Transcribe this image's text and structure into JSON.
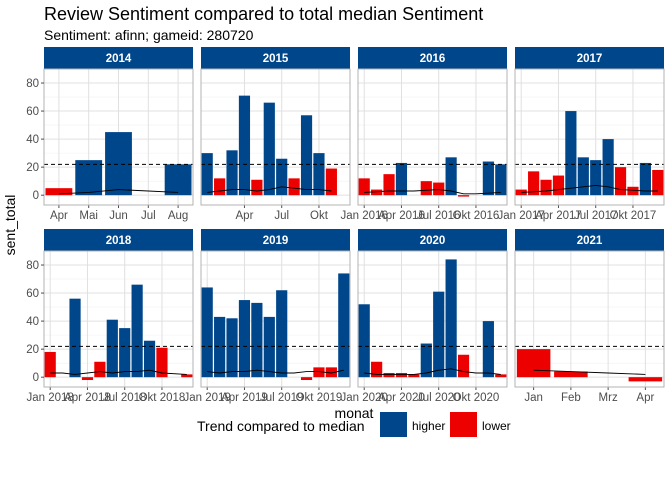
{
  "chart_data": {
    "type": "bar",
    "title": "Review Sentiment compared to total median Sentiment",
    "subtitle": "Sentiment: afinn; gameid: 280720",
    "xlabel": "monat",
    "ylabel": "sent_total",
    "ylim": [
      -7,
      90
    ],
    "y_ticks": [
      0,
      20,
      40,
      60,
      80
    ],
    "median": 22,
    "grid": true,
    "legend": {
      "title": "Trend compared to median",
      "position": "bottom",
      "entries": [
        {
          "key": "higher",
          "label": "higher",
          "color": "#00468B"
        },
        {
          "key": "lower",
          "label": "lower",
          "color": "#ED0000"
        }
      ]
    },
    "panels": [
      {
        "label": "2014",
        "x_range": [
          0.5,
          5.5
        ],
        "ticks": [
          {
            "x": 1,
            "label": "Apr"
          },
          {
            "x": 2,
            "label": "Mai"
          },
          {
            "x": 3,
            "label": "Jun"
          },
          {
            "x": 4,
            "label": "Jul"
          },
          {
            "x": 5,
            "label": "Aug"
          }
        ],
        "bars": [
          {
            "x": 1,
            "y": 5,
            "g": "lower"
          },
          {
            "x": 2,
            "y": 25,
            "g": "higher"
          },
          {
            "x": 3,
            "y": 45,
            "g": "higher"
          },
          {
            "x": 5,
            "y": 22,
            "g": "higher"
          }
        ],
        "trend": [
          [
            1,
            1
          ],
          [
            2,
            2
          ],
          [
            3,
            4
          ],
          [
            4,
            3
          ],
          [
            5,
            2
          ]
        ]
      },
      {
        "label": "2015",
        "x_range": [
          0.5,
          12.5
        ],
        "ticks": [
          {
            "x": 4,
            "label": "Apr"
          },
          {
            "x": 7,
            "label": "Jul"
          },
          {
            "x": 10,
            "label": "Okt"
          }
        ],
        "bars": [
          {
            "x": 1,
            "y": 30,
            "g": "higher"
          },
          {
            "x": 2,
            "y": 12,
            "g": "lower"
          },
          {
            "x": 3,
            "y": 32,
            "g": "higher"
          },
          {
            "x": 4,
            "y": 71,
            "g": "higher"
          },
          {
            "x": 5,
            "y": 11,
            "g": "lower"
          },
          {
            "x": 6,
            "y": 66,
            "g": "higher"
          },
          {
            "x": 7,
            "y": 26,
            "g": "higher"
          },
          {
            "x": 8,
            "y": 12,
            "g": "lower"
          },
          {
            "x": 9,
            "y": 57,
            "g": "higher"
          },
          {
            "x": 10,
            "y": 30,
            "g": "higher"
          },
          {
            "x": 11,
            "y": 19,
            "g": "lower"
          }
        ],
        "trend": [
          [
            1,
            2
          ],
          [
            2,
            3
          ],
          [
            3,
            4
          ],
          [
            4,
            4
          ],
          [
            5,
            3
          ],
          [
            6,
            4
          ],
          [
            7,
            6
          ],
          [
            8,
            5
          ],
          [
            9,
            4
          ],
          [
            10,
            4
          ],
          [
            11,
            3
          ]
        ]
      },
      {
        "label": "2016",
        "x_range": [
          0.5,
          12.5
        ],
        "ticks": [
          {
            "x": 1,
            "label": "Jan 2016"
          },
          {
            "x": 4,
            "label": "Apr 2016"
          },
          {
            "x": 7,
            "label": "Jul 2016"
          },
          {
            "x": 10,
            "label": "Okt 2016"
          }
        ],
        "bars": [
          {
            "x": 1,
            "y": 12,
            "g": "lower"
          },
          {
            "x": 2,
            "y": 4,
            "g": "lower"
          },
          {
            "x": 3,
            "y": 15,
            "g": "lower"
          },
          {
            "x": 4,
            "y": 23,
            "g": "higher"
          },
          {
            "x": 6,
            "y": 10,
            "g": "lower"
          },
          {
            "x": 7,
            "y": 9,
            "g": "lower"
          },
          {
            "x": 8,
            "y": 27,
            "g": "higher"
          },
          {
            "x": 9,
            "y": -1,
            "g": "lower"
          },
          {
            "x": 11,
            "y": 24,
            "g": "higher"
          },
          {
            "x": 12,
            "y": 22,
            "g": "higher"
          }
        ],
        "trend": [
          [
            1,
            2
          ],
          [
            3,
            3
          ],
          [
            5,
            3
          ],
          [
            7,
            4
          ],
          [
            8,
            3
          ],
          [
            9,
            1
          ],
          [
            10,
            1
          ],
          [
            12,
            2
          ]
        ]
      },
      {
        "label": "2017",
        "x_range": [
          0.5,
          12.5
        ],
        "ticks": [
          {
            "x": 1,
            "label": "Jan 2017"
          },
          {
            "x": 4,
            "label": "Apr 2017"
          },
          {
            "x": 7,
            "label": "Jul 2017"
          },
          {
            "x": 10,
            "label": "Okt 2017"
          }
        ],
        "bars": [
          {
            "x": 1,
            "y": 4,
            "g": "lower"
          },
          {
            "x": 2,
            "y": 17,
            "g": "lower"
          },
          {
            "x": 3,
            "y": 11,
            "g": "lower"
          },
          {
            "x": 4,
            "y": 14,
            "g": "lower"
          },
          {
            "x": 5,
            "y": 60,
            "g": "higher"
          },
          {
            "x": 6,
            "y": 27,
            "g": "higher"
          },
          {
            "x": 7,
            "y": 25,
            "g": "higher"
          },
          {
            "x": 8,
            "y": 40,
            "g": "higher"
          },
          {
            "x": 9,
            "y": 20,
            "g": "lower"
          },
          {
            "x": 10,
            "y": 6,
            "g": "lower"
          },
          {
            "x": 11,
            "y": 23,
            "g": "higher"
          },
          {
            "x": 12,
            "y": 18,
            "g": "lower"
          }
        ],
        "trend": [
          [
            1,
            2
          ],
          [
            3,
            3
          ],
          [
            5,
            5
          ],
          [
            7,
            7
          ],
          [
            8,
            6
          ],
          [
            9,
            4
          ],
          [
            11,
            3
          ],
          [
            12,
            3
          ]
        ]
      },
      {
        "label": "2018",
        "x_range": [
          0.5,
          12.5
        ],
        "ticks": [
          {
            "x": 1,
            "label": "Jan 2018"
          },
          {
            "x": 4,
            "label": "Apr 2018"
          },
          {
            "x": 7,
            "label": "Jul 2018"
          },
          {
            "x": 10,
            "label": "Okt 2018"
          }
        ],
        "bars": [
          {
            "x": 1,
            "y": 18,
            "g": "lower"
          },
          {
            "x": 3,
            "y": 56,
            "g": "higher"
          },
          {
            "x": 4,
            "y": -2,
            "g": "lower"
          },
          {
            "x": 5,
            "y": 11,
            "g": "lower"
          },
          {
            "x": 6,
            "y": 41,
            "g": "higher"
          },
          {
            "x": 7,
            "y": 35,
            "g": "higher"
          },
          {
            "x": 8,
            "y": 66,
            "g": "higher"
          },
          {
            "x": 9,
            "y": 26,
            "g": "higher"
          },
          {
            "x": 10,
            "y": 21,
            "g": "lower"
          },
          {
            "x": 12,
            "y": 2,
            "g": "lower"
          }
        ],
        "trend": [
          [
            1,
            3
          ],
          [
            2,
            3
          ],
          [
            3,
            2
          ],
          [
            4,
            3
          ],
          [
            5,
            4
          ],
          [
            6,
            3
          ],
          [
            7,
            4
          ],
          [
            8,
            4
          ],
          [
            9,
            5
          ],
          [
            10,
            3
          ],
          [
            12,
            2
          ]
        ]
      },
      {
        "label": "2019",
        "x_range": [
          0.5,
          12.5
        ],
        "ticks": [
          {
            "x": 1,
            "label": "Jan 2019"
          },
          {
            "x": 4,
            "label": "Apr 2019"
          },
          {
            "x": 7,
            "label": "Jul 2019"
          },
          {
            "x": 10,
            "label": "Okt 2019"
          }
        ],
        "bars": [
          {
            "x": 1,
            "y": 64,
            "g": "higher"
          },
          {
            "x": 2,
            "y": 43,
            "g": "higher"
          },
          {
            "x": 3,
            "y": 42,
            "g": "higher"
          },
          {
            "x": 4,
            "y": 55,
            "g": "higher"
          },
          {
            "x": 5,
            "y": 53,
            "g": "higher"
          },
          {
            "x": 6,
            "y": 43,
            "g": "higher"
          },
          {
            "x": 7,
            "y": 62,
            "g": "higher"
          },
          {
            "x": 9,
            "y": -2,
            "g": "lower"
          },
          {
            "x": 10,
            "y": 7,
            "g": "lower"
          },
          {
            "x": 11,
            "y": 7,
            "g": "lower"
          },
          {
            "x": 12,
            "y": 74,
            "g": "higher"
          }
        ],
        "trend": [
          [
            1,
            4
          ],
          [
            2,
            3
          ],
          [
            3,
            4
          ],
          [
            4,
            4
          ],
          [
            5,
            5
          ],
          [
            6,
            4
          ],
          [
            7,
            3
          ],
          [
            8,
            3
          ],
          [
            9,
            4
          ],
          [
            10,
            4
          ],
          [
            11,
            3
          ],
          [
            12,
            5
          ]
        ]
      },
      {
        "label": "2020",
        "x_range": [
          0.5,
          12.5
        ],
        "ticks": [
          {
            "x": 1,
            "label": "Jan 2020"
          },
          {
            "x": 4,
            "label": "Apr 2020"
          },
          {
            "x": 7,
            "label": "Jul 2020"
          },
          {
            "x": 10,
            "label": "Okt 2020"
          }
        ],
        "bars": [
          {
            "x": 1,
            "y": 52,
            "g": "higher"
          },
          {
            "x": 2,
            "y": 11,
            "g": "lower"
          },
          {
            "x": 3,
            "y": 3,
            "g": "lower"
          },
          {
            "x": 4,
            "y": 3,
            "g": "lower"
          },
          {
            "x": 5,
            "y": 2,
            "g": "lower"
          },
          {
            "x": 6,
            "y": 24,
            "g": "higher"
          },
          {
            "x": 7,
            "y": 61,
            "g": "higher"
          },
          {
            "x": 8,
            "y": 84,
            "g": "higher"
          },
          {
            "x": 9,
            "y": 16,
            "g": "lower"
          },
          {
            "x": 11,
            "y": 40,
            "g": "higher"
          },
          {
            "x": 12,
            "y": 2,
            "g": "lower"
          }
        ],
        "trend": [
          [
            1,
            3
          ],
          [
            2,
            2
          ],
          [
            3,
            2
          ],
          [
            4,
            2
          ],
          [
            5,
            2
          ],
          [
            6,
            3
          ],
          [
            7,
            5
          ],
          [
            8,
            6
          ],
          [
            9,
            4
          ],
          [
            10,
            3
          ],
          [
            11,
            3
          ],
          [
            12,
            2
          ]
        ]
      },
      {
        "label": "2021",
        "x_range": [
          0.5,
          4.5
        ],
        "ticks": [
          {
            "x": 1,
            "label": "Jan"
          },
          {
            "x": 2,
            "label": "Feb"
          },
          {
            "x": 3,
            "label": "Mrz"
          },
          {
            "x": 4,
            "label": "Apr"
          }
        ],
        "bars": [
          {
            "x": 1,
            "y": 20,
            "g": "lower"
          },
          {
            "x": 2,
            "y": 4,
            "g": "lower"
          },
          {
            "x": 4,
            "y": -3,
            "g": "lower"
          }
        ],
        "trend": [
          [
            1,
            5
          ],
          [
            2,
            4
          ],
          [
            3,
            3
          ],
          [
            4,
            2
          ]
        ]
      }
    ]
  }
}
